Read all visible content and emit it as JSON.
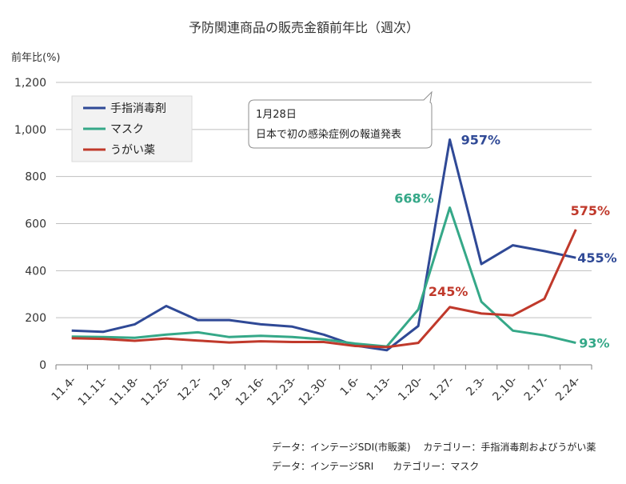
{
  "chart_data": {
    "type": "line",
    "title": "予防関連商品の販売金額前年比（週次）",
    "ylabel": "前年比(%)",
    "xlabel": "",
    "ylim": [
      0,
      1200
    ],
    "yticks": [
      0,
      200,
      400,
      600,
      800,
      1000,
      1200
    ],
    "ytick_labels": [
      "0",
      "200",
      "400",
      "600",
      "800",
      "1,000",
      "1,200"
    ],
    "grid": true,
    "legend_position": "top-left",
    "categories": [
      "11.4-",
      "11.11-",
      "11.18-",
      "11.25-",
      "12.2-",
      "12.9-",
      "12.16-",
      "12.23-",
      "12.30-",
      "1.6-",
      "1.13-",
      "1.20-",
      "1.27-",
      "2.3-",
      "2.10-",
      "2.17-",
      "2.24-"
    ],
    "series": [
      {
        "name": "手指消毒剤",
        "color": "#2f4996",
        "values": [
          145,
          140,
          172,
          250,
          190,
          190,
          172,
          162,
          128,
          82,
          62,
          165,
          957,
          428,
          508,
          483,
          455
        ],
        "labels": [
          {
            "index": 12,
            "text": "957%"
          },
          {
            "index": 16,
            "text": "455%"
          }
        ]
      },
      {
        "name": "マスク",
        "color": "#35a888",
        "values": [
          120,
          118,
          115,
          128,
          138,
          118,
          123,
          118,
          108,
          90,
          78,
          235,
          668,
          268,
          145,
          125,
          93
        ],
        "labels": [
          {
            "index": 12,
            "text": "668%"
          },
          {
            "index": 16,
            "text": "93%"
          }
        ]
      },
      {
        "name": "うがい薬",
        "color": "#c0392b",
        "values": [
          113,
          110,
          102,
          112,
          103,
          95,
          100,
          97,
          97,
          80,
          75,
          93,
          245,
          218,
          210,
          280,
          575
        ],
        "labels": [
          {
            "index": 12,
            "text": "245%"
          },
          {
            "index": 16,
            "text": "575%"
          }
        ]
      }
    ],
    "annotation": {
      "lines": [
        "1月28日",
        "日本で初の感染症例の報道発表"
      ]
    },
    "sources": [
      "データ：インテージSDI(市販薬)　 カテゴリー：手指消毒剤およびうがい薬",
      "データ：インテージSRI　　カテゴリー：マスク"
    ]
  }
}
